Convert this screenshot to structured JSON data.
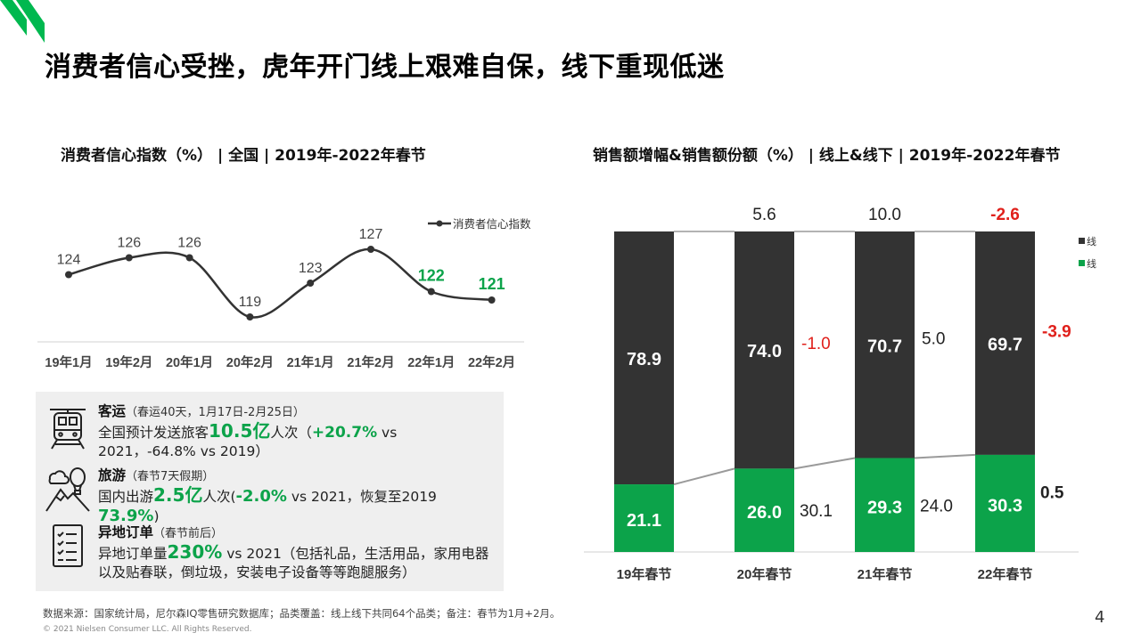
{
  "title": "消费者信心受挫，虎年开门线上艰难自保，线下重现低迷",
  "page_number": "4",
  "colors": {
    "accent_green": "#0ca34a",
    "dark_bar": "#333333",
    "negative_red": "#e0201b",
    "line": "#333333"
  },
  "footer": {
    "source": "数据来源：国家统计局，尼尔森IQ零售研究数据库；品类覆盖：线上线下共同64个品类；备注：春节为1月+2月。",
    "copyright": "© 2021 Nielsen Consumer LLC. All Rights Reserved."
  },
  "info": {
    "transport": {
      "icon": "train-icon",
      "head": "客运",
      "note": "（春运40天，1月17日-2月25日）",
      "t1": "全国预计发送旅客",
      "v1": "10.5亿",
      "t2": "人次（",
      "v2": "+20.7%",
      "t3": " vs 2021，-64.8% vs 2019）"
    },
    "travel": {
      "icon": "balloon-mountain-icon",
      "head": "旅游",
      "note": "（春节7天假期）",
      "t1": "国内出游",
      "v1": "2.5亿",
      "t2": "人次(",
      "v2": "-2.0%",
      "t3": " vs 2021，恢复至2019 ",
      "v3": "73.9%",
      "t4": ")"
    },
    "orders": {
      "icon": "checklist-icon",
      "head": "异地订单",
      "note": "（春节前后）",
      "t1": "异地订单量",
      "v1": "230%",
      "t2": " vs 2021（包括礼品，生活用品，家用电器以及贴春联，倒垃圾，安装电子设备等等跑腿服务）"
    }
  },
  "chart_data": [
    {
      "type": "line",
      "title": "消费者信心指数（%）  | 全国 | 2019年-2022年春节",
      "categories": [
        "19年1月",
        "19年2月",
        "20年1月",
        "20年2月",
        "21年1月",
        "21年2月",
        "22年1月",
        "22年2月"
      ],
      "series": [
        {
          "name": "消费者信心指数",
          "values": [
            124,
            126,
            126,
            119,
            123,
            127,
            122,
            121
          ]
        }
      ],
      "highlight_points": [
        "22年1月",
        "22年2月"
      ],
      "legend": "top-right",
      "grid": false
    },
    {
      "type": "bar",
      "stacked": true,
      "percent_stacked": true,
      "title": "销售额增幅&销售额份额（%）  | 线上&线下 | 2019年-2022年春节",
      "categories": [
        "19年春节",
        "20年春节",
        "21年春节",
        "22年春节"
      ],
      "series": [
        {
          "name": "线下",
          "values": [
            78.9,
            74.0,
            70.7,
            69.7
          ]
        },
        {
          "name": "线上",
          "values": [
            21.1,
            26.0,
            29.3,
            30.3
          ]
        }
      ],
      "total_growth": [
        "",
        "5.6",
        "10.0",
        "-2.6"
      ],
      "offline_growth": [
        "",
        "-1.0",
        "5.0",
        "-3.9"
      ],
      "online_growth": [
        "",
        "30.1",
        "24.0",
        "0.5"
      ],
      "legend": "right",
      "grid": false
    }
  ]
}
